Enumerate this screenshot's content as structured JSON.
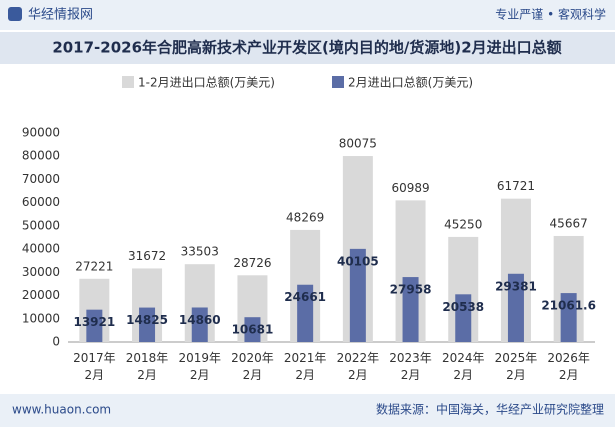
{
  "header": {
    "brand": "华经情报网",
    "slogan": "专业严谨 • 客观科学"
  },
  "footer": {
    "website": "www.huaon.com",
    "source": "数据来源：中国海关，华经产业研究院整理"
  },
  "chart_data": {
    "type": "bar",
    "title": "2017-2026年合肥高新技术产业开发区(境内目的地/货源地)2月进出口总额",
    "categories": [
      "2017年2月",
      "2018年2月",
      "2019年2月",
      "2020年2月",
      "2021年2月",
      "2022年2月",
      "2023年2月",
      "2024年2月",
      "2025年2月",
      "2026年2月"
    ],
    "series": [
      {
        "name": "1-2月进出口总额(万美元)",
        "color": "#d9d9d9",
        "values": [
          27221,
          31672,
          33503,
          28726,
          48269,
          80075,
          60989,
          45250,
          61721,
          45667
        ]
      },
      {
        "name": "2月进出口总额(万美元)",
        "color": "#5b6da6",
        "values": [
          13921,
          14825,
          14860,
          10681,
          24661,
          40105,
          27958,
          20538,
          29381,
          21061.6
        ]
      }
    ],
    "ylim": [
      0,
      90000
    ],
    "yticks": [
      0,
      10000,
      20000,
      30000,
      40000,
      50000,
      60000,
      70000,
      80000,
      90000
    ],
    "grid": false
  }
}
